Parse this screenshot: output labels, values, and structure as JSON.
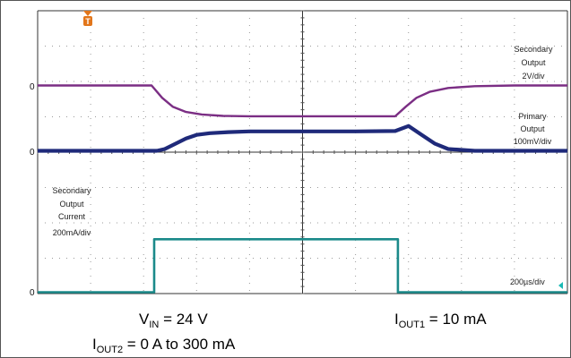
{
  "chart_data": {
    "type": "line",
    "title": "",
    "xlabel": "",
    "ylabel": "",
    "x_range_us": [
      0,
      2000
    ],
    "grid": true,
    "trigger_marker": "T",
    "timebase_label": "200µs/div",
    "series": [
      {
        "name": "Secondary Output",
        "channel_label": [
          "Secondary",
          "Output",
          "2V/div"
        ],
        "zero_label": "0",
        "color": "#7b2e84",
        "x_us": [
          0,
          430,
          470,
          510,
          560,
          620,
          700,
          800,
          1000,
          1200,
          1350,
          1390,
          1430,
          1480,
          1550,
          1650,
          1800,
          2000
        ],
        "y_div": [
          0,
          0,
          -0.35,
          -0.6,
          -0.75,
          -0.82,
          -0.86,
          -0.87,
          -0.87,
          -0.87,
          -0.87,
          -0.6,
          -0.35,
          -0.18,
          -0.07,
          -0.02,
          0,
          0
        ]
      },
      {
        "name": "Primary Output",
        "channel_label": [
          "Primary",
          "Output",
          "100mV/div"
        ],
        "zero_label": "0",
        "color": "#1f2a7a",
        "x_us": [
          0,
          450,
          480,
          520,
          560,
          600,
          650,
          720,
          800,
          1000,
          1200,
          1350,
          1400,
          1450,
          1500,
          1550,
          1650,
          2000
        ],
        "y_div": [
          0,
          0,
          0.05,
          0.2,
          0.35,
          0.45,
          0.5,
          0.53,
          0.55,
          0.55,
          0.55,
          0.56,
          0.7,
          0.45,
          0.2,
          0.05,
          0,
          0
        ]
      },
      {
        "name": "Secondary Output Current",
        "channel_label": [
          "Secondary",
          "Output",
          "Current",
          "200mA/div"
        ],
        "zero_label": "0",
        "color": "#1b8a8a",
        "x_us": [
          0,
          440,
          440,
          1360,
          1360,
          2000
        ],
        "y_div": [
          0,
          0,
          1.5,
          1.5,
          0,
          0
        ]
      }
    ],
    "conditions": {
      "vin": {
        "symbol": "V",
        "sub": "IN",
        "text": " = 24 V"
      },
      "iout1": {
        "symbol": "I",
        "sub": "OUT1",
        "text": " = 10 mA"
      },
      "iout2": {
        "symbol": "I",
        "sub": "OUT2",
        "text": " = 0 A to 300 mA"
      }
    }
  }
}
